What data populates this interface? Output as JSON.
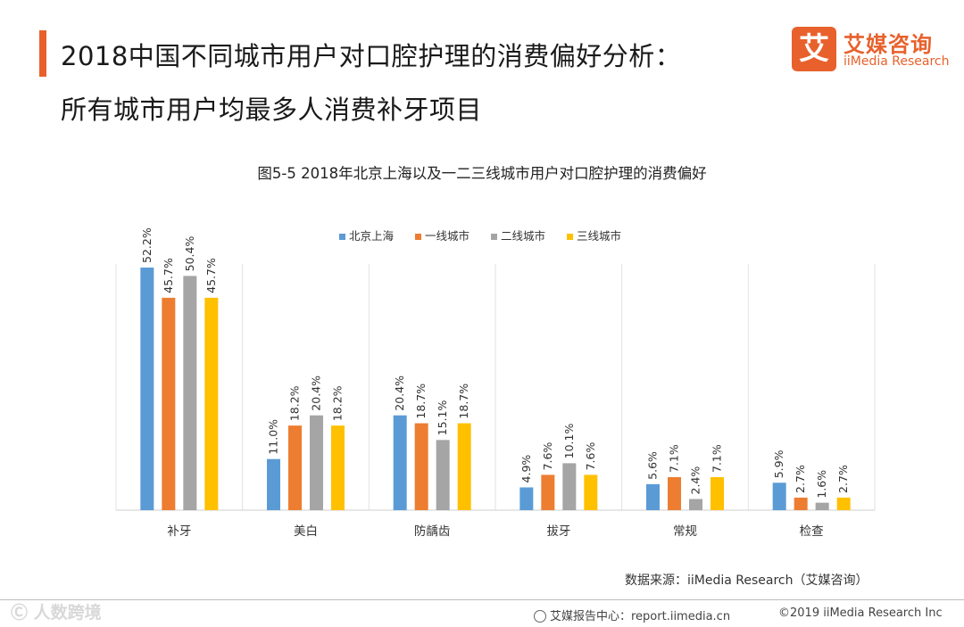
{
  "header": {
    "title_line1": "2018中国不同城市用户对口腔护理的消费偏好分析：",
    "title_line2": "所有城市用户均最多人消费补牙项目"
  },
  "logo": {
    "mark": "艾",
    "name_cn": "艾媒咨询",
    "name_en": "iiMedia Research"
  },
  "colors": {
    "accent": "#e8612c",
    "series": [
      "#5b9bd5",
      "#ed7d31",
      "#a5a5a5",
      "#ffc000"
    ]
  },
  "chart_data": {
    "type": "bar",
    "title": "图5-5  2018年北京上海以及一二三线城市用户对口腔护理的消费偏好",
    "categories": [
      "补牙",
      "美白",
      "防龋齿",
      "拔牙",
      "常规",
      "检查"
    ],
    "series": [
      {
        "name": "北京上海",
        "values": [
          52.2,
          11.0,
          20.4,
          4.9,
          5.6,
          5.9
        ]
      },
      {
        "name": "一线城市",
        "values": [
          45.7,
          18.2,
          18.7,
          7.6,
          7.1,
          2.7
        ]
      },
      {
        "name": "二线城市",
        "values": [
          50.4,
          20.4,
          15.1,
          10.1,
          2.4,
          1.6
        ]
      },
      {
        "name": "三线城市",
        "values": [
          45.7,
          18.2,
          18.7,
          7.6,
          7.1,
          2.7
        ]
      }
    ],
    "value_suffix": "%",
    "ylim": [
      0,
      60
    ],
    "legend_position": "top-center",
    "grid": "vertical category separators"
  },
  "source": "数据来源：iiMedia Research（艾媒咨询）",
  "footer": {
    "watermark": "Ⓒ 人数跨境",
    "report_center": "艾媒报告中心：report.iimedia.cn",
    "copyright": "©2019  iiMedia Research  Inc"
  }
}
